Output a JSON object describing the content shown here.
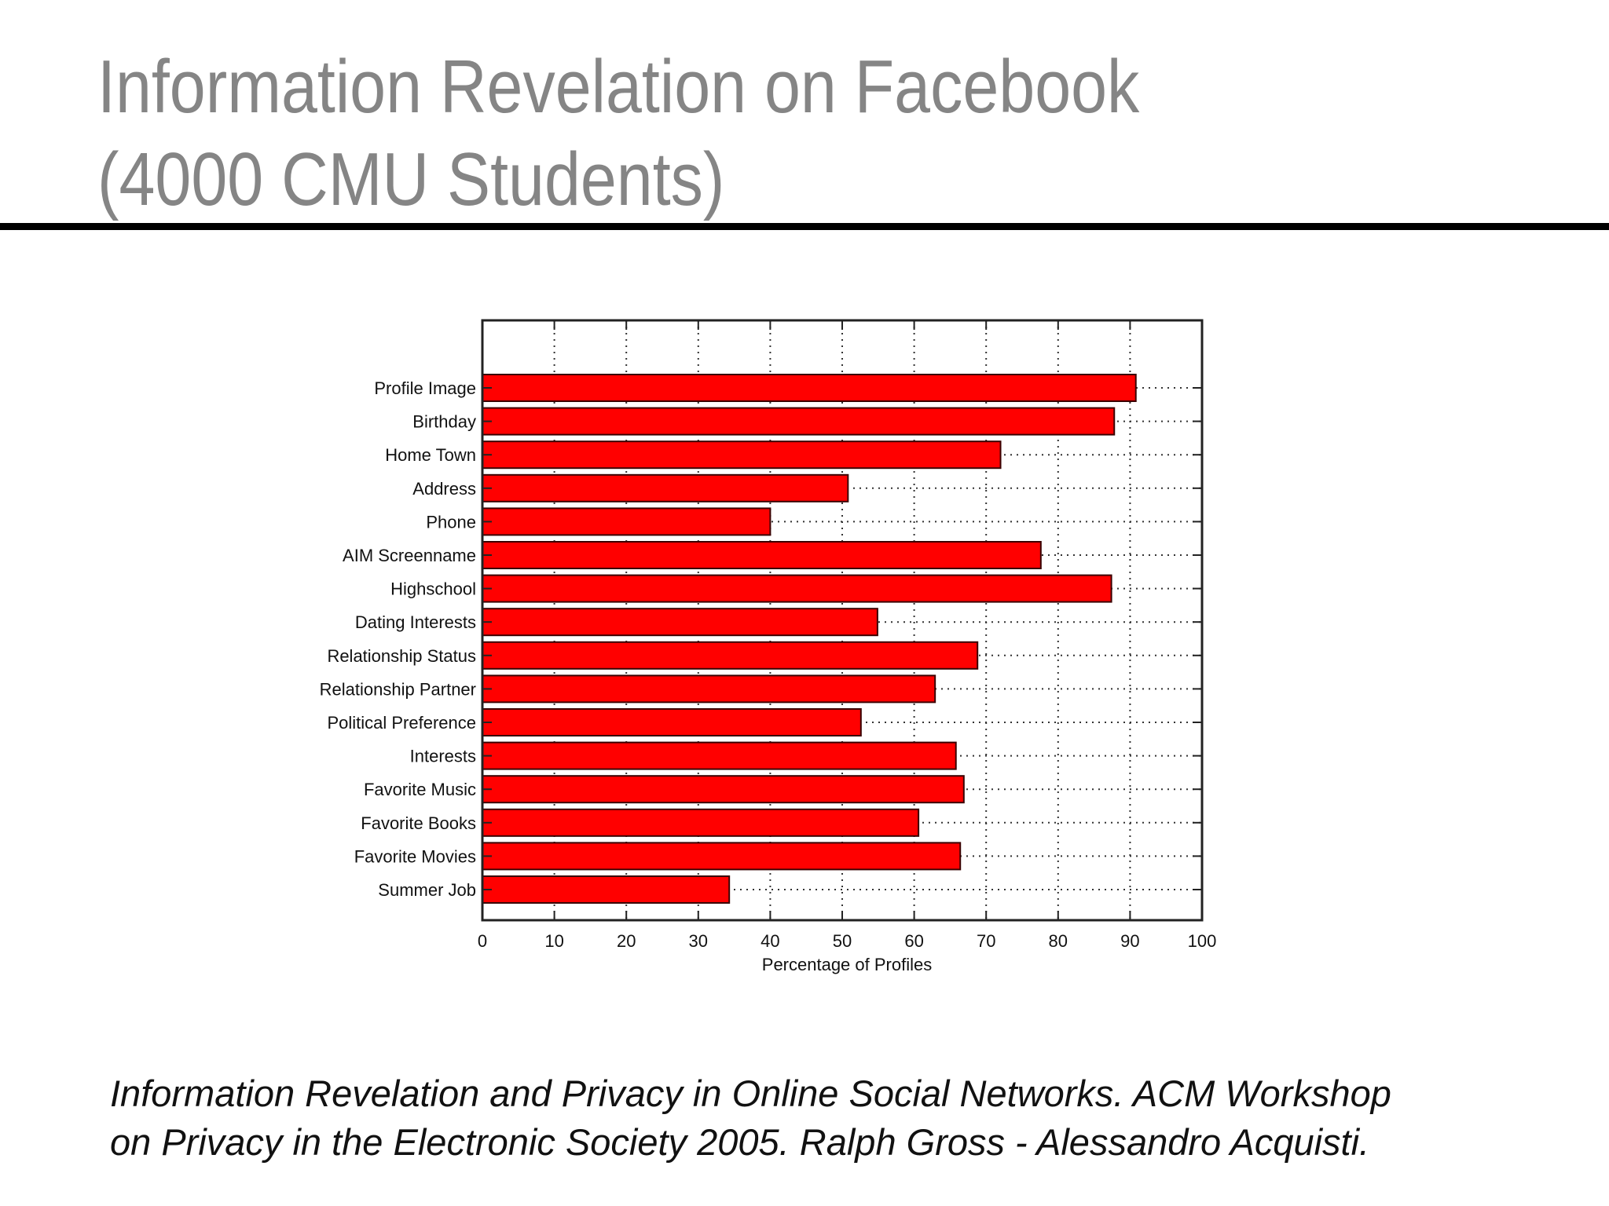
{
  "slide": {
    "title_line1": "Information Revelation on Facebook",
    "title_line2": "(4000 CMU Students)",
    "caption_line1": "Information Revelation and Privacy in Online Social Networks. ACM Workshop",
    "caption_line2": "on Privacy in the Electronic Society 2005. Ralph Gross - Alessandro Acquisti."
  },
  "chart_data": {
    "type": "bar",
    "orientation": "horizontal",
    "title": "",
    "xlabel": "Percentage of Profiles",
    "ylabel": "",
    "xlim": [
      0,
      100
    ],
    "xticks": [
      0,
      10,
      20,
      30,
      40,
      50,
      60,
      70,
      80,
      90,
      100
    ],
    "grid": true,
    "bar_color": "#ff0000",
    "categories": [
      "Profile Image",
      "Birthday",
      "Home Town",
      "Address",
      "Phone",
      "AIM Screenname",
      "Highschool",
      "Dating Interests",
      "Relationship Status",
      "Relationship Partner",
      "Political Preference",
      "Interests",
      "Favorite Music",
      "Favorite Books",
      "Favorite Movies",
      "Summer Job"
    ],
    "values": [
      90.8,
      87.8,
      72,
      50.8,
      40,
      77.6,
      87.4,
      54.9,
      68.8,
      62.9,
      52.6,
      65.8,
      66.9,
      60.6,
      66.4,
      34.3
    ]
  }
}
